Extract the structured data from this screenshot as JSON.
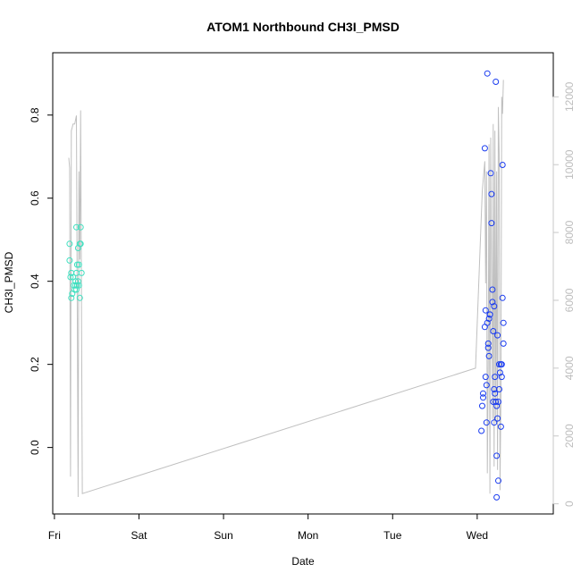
{
  "chart_data": {
    "type": "scatter",
    "title": "ATOM1 Northbound CH3I_PMSD",
    "xlabel": "Date",
    "ylabel": "CH3I_PMSD",
    "x_ticks": [
      "Fri",
      "Sat",
      "Sun",
      "Mon",
      "Tue",
      "Wed"
    ],
    "xlim_days": [
      -0.02,
      5.9
    ],
    "ylim": [
      -0.16,
      0.95
    ],
    "y_ticks": [
      0.0,
      0.2,
      0.4,
      0.6,
      0.8
    ],
    "y2lim": [
      -300,
      13300
    ],
    "y2_ticks": [
      0,
      2000,
      4000,
      6000,
      8000,
      10000,
      12000
    ],
    "y2_color": "#c8c8c8",
    "grid": false,
    "colors": {
      "series_fri": "#40e0c0",
      "series_wed": "#1a3cf0",
      "line": "#c0c0c0"
    },
    "series": [
      {
        "points": [
          [
            0.18,
            0.49
          ],
          [
            0.18,
            0.45
          ],
          [
            0.19,
            0.41
          ],
          [
            0.2,
            0.36
          ],
          [
            0.2,
            0.42
          ],
          [
            0.21,
            0.37
          ],
          [
            0.22,
            0.41
          ],
          [
            0.23,
            0.39
          ],
          [
            0.24,
            0.38
          ],
          [
            0.25,
            0.4
          ],
          [
            0.25,
            0.39
          ],
          [
            0.26,
            0.53
          ],
          [
            0.26,
            0.38
          ],
          [
            0.27,
            0.44
          ],
          [
            0.27,
            0.39
          ],
          [
            0.28,
            0.48
          ],
          [
            0.29,
            0.44
          ],
          [
            0.29,
            0.39
          ],
          [
            0.3,
            0.36
          ],
          [
            0.3,
            0.49
          ],
          [
            0.31,
            0.53
          ],
          [
            0.31,
            0.49
          ],
          [
            0.32,
            0.42
          ],
          [
            0.26,
            0.42
          ],
          [
            0.28,
            0.4
          ]
        ]
      },
      {
        "points": [
          [
            5.05,
            0.04
          ],
          [
            5.06,
            0.1
          ],
          [
            5.07,
            0.12
          ],
          [
            5.07,
            0.13
          ],
          [
            5.09,
            0.29
          ],
          [
            5.09,
            0.72
          ],
          [
            5.1,
            0.33
          ],
          [
            5.1,
            0.17
          ],
          [
            5.11,
            0.06
          ],
          [
            5.11,
            0.15
          ],
          [
            5.12,
            0.9
          ],
          [
            5.12,
            0.3
          ],
          [
            5.13,
            0.24
          ],
          [
            5.13,
            0.25
          ],
          [
            5.14,
            0.31
          ],
          [
            5.14,
            0.22
          ],
          [
            5.15,
            0.32
          ],
          [
            5.15,
            0.32
          ],
          [
            5.16,
            0.66
          ],
          [
            5.17,
            0.61
          ],
          [
            5.17,
            0.54
          ],
          [
            5.18,
            0.38
          ],
          [
            5.18,
            0.35
          ],
          [
            5.19,
            0.28
          ],
          [
            5.19,
            0.11
          ],
          [
            5.2,
            0.14
          ],
          [
            5.2,
            0.06
          ],
          [
            5.21,
            0.13
          ],
          [
            5.21,
            0.17
          ],
          [
            5.22,
            0.88
          ],
          [
            5.22,
            0.11
          ],
          [
            5.23,
            0.1
          ],
          [
            5.23,
            -0.02
          ],
          [
            5.24,
            0.07
          ],
          [
            5.24,
            0.27
          ],
          [
            5.25,
            0.11
          ],
          [
            5.25,
            -0.08
          ],
          [
            5.26,
            0.14
          ],
          [
            5.27,
            0.18
          ],
          [
            5.28,
            0.2
          ],
          [
            5.28,
            0.05
          ],
          [
            5.29,
            0.2
          ],
          [
            5.29,
            0.17
          ],
          [
            5.3,
            0.68
          ],
          [
            5.3,
            0.36
          ],
          [
            5.31,
            0.3
          ],
          [
            5.31,
            0.25
          ],
          [
            5.23,
            -0.12
          ],
          [
            5.2,
            0.34
          ],
          [
            5.26,
            0.2
          ]
        ]
      }
    ],
    "line_secondary": [
      [
        0.17,
        10200
      ],
      [
        0.18,
        9900
      ],
      [
        0.19,
        800
      ],
      [
        0.2,
        11000
      ],
      [
        0.21,
        11100
      ],
      [
        0.22,
        11200
      ],
      [
        0.24,
        11200
      ],
      [
        0.26,
        11450
      ],
      [
        0.27,
        6000
      ],
      [
        0.28,
        200
      ],
      [
        0.29,
        9800
      ],
      [
        0.3,
        7200
      ],
      [
        0.31,
        11600
      ],
      [
        0.33,
        300
      ],
      [
        4.98,
        4000
      ],
      [
        5.06,
        9200
      ],
      [
        5.08,
        9800
      ],
      [
        5.09,
        10100
      ],
      [
        5.1,
        6500
      ],
      [
        5.11,
        9800
      ],
      [
        5.12,
        900
      ],
      [
        5.13,
        4200
      ],
      [
        5.14,
        10600
      ],
      [
        5.15,
        300
      ],
      [
        5.16,
        10800
      ],
      [
        5.17,
        6900
      ],
      [
        5.18,
        2500
      ],
      [
        5.19,
        11200
      ],
      [
        5.2,
        1100
      ],
      [
        5.21,
        11000
      ],
      [
        5.22,
        2400
      ],
      [
        5.23,
        9800
      ],
      [
        5.24,
        1000
      ],
      [
        5.25,
        11700
      ],
      [
        5.26,
        10300
      ],
      [
        5.27,
        400
      ],
      [
        5.28,
        3200
      ],
      [
        5.29,
        12000
      ],
      [
        5.3,
        11500
      ],
      [
        5.31,
        12500
      ]
    ]
  }
}
